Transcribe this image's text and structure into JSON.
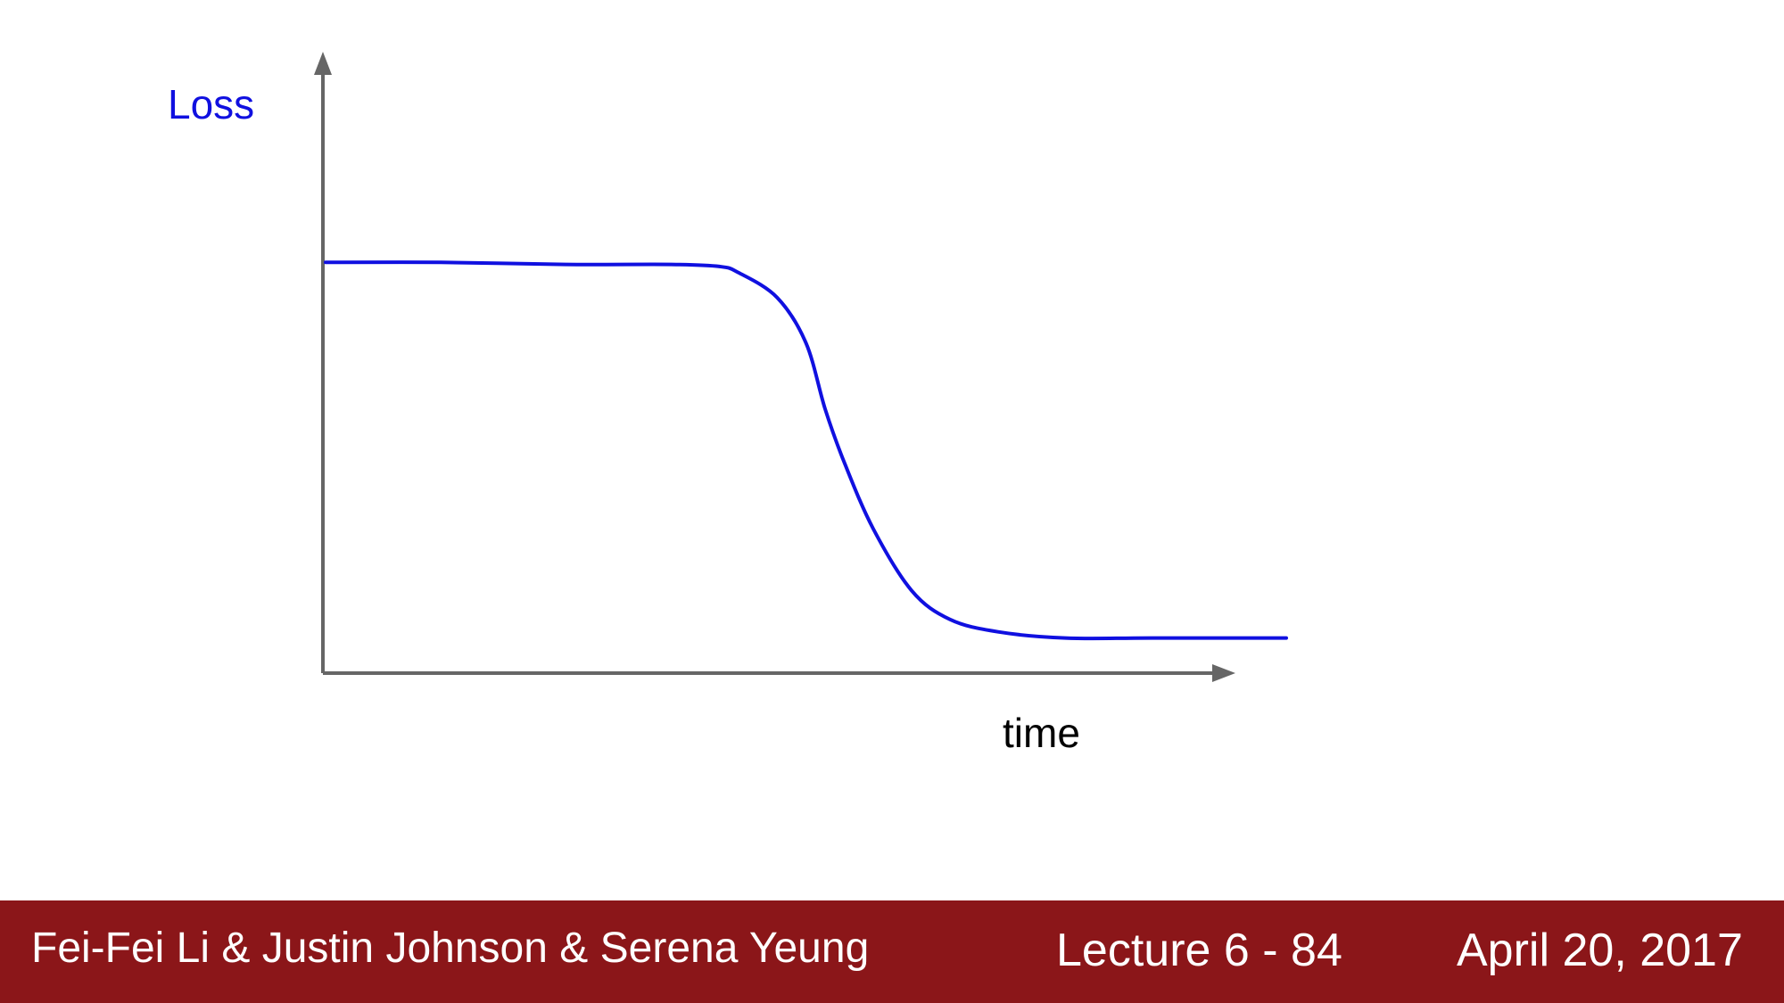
{
  "chart_data": {
    "type": "line",
    "title": "",
    "xlabel": "time",
    "ylabel": "Loss",
    "xlim": [
      0,
      1
    ],
    "ylim": [
      0,
      1
    ],
    "grid": false,
    "legend": "none",
    "series": [
      {
        "color": "#1010e0",
        "x": [
          0.0,
          0.12,
          0.25,
          0.36,
          0.41,
          0.43,
          0.47,
          0.5,
          0.52,
          0.54,
          0.57,
          0.61,
          0.65,
          0.7,
          0.77,
          0.86,
          1.0
        ],
        "y": [
          0.995,
          0.995,
          0.99,
          0.99,
          0.985,
          0.97,
          0.91,
          0.8,
          0.64,
          0.51,
          0.35,
          0.2,
          0.13,
          0.1,
          0.085,
          0.085,
          0.085
        ]
      }
    ],
    "colors": {
      "axis": "#666666",
      "ylabel": "#1010e0",
      "xlabel": "#000000"
    }
  },
  "footer": {
    "authors": "Fei-Fei Li & Justin Johnson & Serena Yeung",
    "lecture": "Lecture 6 - 84",
    "date": "April 20, 2017",
    "background": "#8b1619"
  }
}
